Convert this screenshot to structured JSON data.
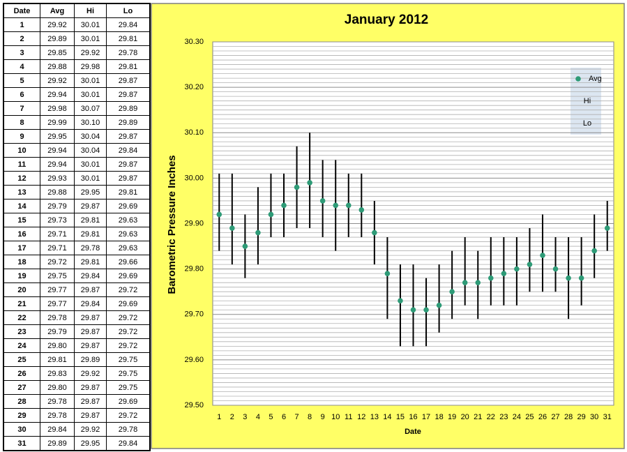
{
  "table": {
    "headers": [
      "Date",
      "Avg",
      "Hi",
      "Lo"
    ],
    "rows": [
      [
        "1",
        "29.92",
        "30.01",
        "29.84"
      ],
      [
        "2",
        "29.89",
        "30.01",
        "29.81"
      ],
      [
        "3",
        "29.85",
        "29.92",
        "29.78"
      ],
      [
        "4",
        "29.88",
        "29.98",
        "29.81"
      ],
      [
        "5",
        "29.92",
        "30.01",
        "29.87"
      ],
      [
        "6",
        "29.94",
        "30.01",
        "29.87"
      ],
      [
        "7",
        "29.98",
        "30.07",
        "29.89"
      ],
      [
        "8",
        "29.99",
        "30.10",
        "29.89"
      ],
      [
        "9",
        "29.95",
        "30.04",
        "29.87"
      ],
      [
        "10",
        "29.94",
        "30.04",
        "29.84"
      ],
      [
        "11",
        "29.94",
        "30.01",
        "29.87"
      ],
      [
        "12",
        "29.93",
        "30.01",
        "29.87"
      ],
      [
        "13",
        "29.88",
        "29.95",
        "29.81"
      ],
      [
        "14",
        "29.79",
        "29.87",
        "29.69"
      ],
      [
        "15",
        "29.73",
        "29.81",
        "29.63"
      ],
      [
        "16",
        "29.71",
        "29.81",
        "29.63"
      ],
      [
        "17",
        "29.71",
        "29.78",
        "29.63"
      ],
      [
        "18",
        "29.72",
        "29.81",
        "29.66"
      ],
      [
        "19",
        "29.75",
        "29.84",
        "29.69"
      ],
      [
        "20",
        "29.77",
        "29.87",
        "29.72"
      ],
      [
        "21",
        "29.77",
        "29.84",
        "29.69"
      ],
      [
        "22",
        "29.78",
        "29.87",
        "29.72"
      ],
      [
        "23",
        "29.79",
        "29.87",
        "29.72"
      ],
      [
        "24",
        "29.80",
        "29.87",
        "29.72"
      ],
      [
        "25",
        "29.81",
        "29.89",
        "29.75"
      ],
      [
        "26",
        "29.83",
        "29.92",
        "29.75"
      ],
      [
        "27",
        "29.80",
        "29.87",
        "29.75"
      ],
      [
        "28",
        "29.78",
        "29.87",
        "29.69"
      ],
      [
        "29",
        "29.78",
        "29.87",
        "29.72"
      ],
      [
        "30",
        "29.84",
        "29.92",
        "29.78"
      ],
      [
        "31",
        "29.89",
        "29.95",
        "29.84"
      ]
    ]
  },
  "chart_data": {
    "type": "errorbar",
    "title": "January 2012",
    "x_label": "Date",
    "y_label": "Barometric Pressure Inches",
    "categories": [
      1,
      2,
      3,
      4,
      5,
      6,
      7,
      8,
      9,
      10,
      11,
      12,
      13,
      14,
      15,
      16,
      17,
      18,
      19,
      20,
      21,
      22,
      23,
      24,
      25,
      26,
      27,
      28,
      29,
      30,
      31
    ],
    "series": [
      {
        "name": "Avg",
        "color": "#2e9b77",
        "values": [
          29.92,
          29.89,
          29.85,
          29.88,
          29.92,
          29.94,
          29.98,
          29.99,
          29.95,
          29.94,
          29.94,
          29.93,
          29.88,
          29.79,
          29.73,
          29.71,
          29.71,
          29.72,
          29.75,
          29.77,
          29.77,
          29.78,
          29.79,
          29.8,
          29.81,
          29.83,
          29.8,
          29.78,
          29.78,
          29.84,
          29.89
        ]
      },
      {
        "name": "Hi",
        "color": "#000000",
        "values": [
          30.01,
          30.01,
          29.92,
          29.98,
          30.01,
          30.01,
          30.07,
          30.1,
          30.04,
          30.04,
          30.01,
          30.01,
          29.95,
          29.87,
          29.81,
          29.81,
          29.78,
          29.81,
          29.84,
          29.87,
          29.84,
          29.87,
          29.87,
          29.87,
          29.89,
          29.92,
          29.87,
          29.87,
          29.87,
          29.92,
          29.95
        ]
      },
      {
        "name": "Lo",
        "color": "#000000",
        "values": [
          29.84,
          29.81,
          29.78,
          29.81,
          29.87,
          29.87,
          29.89,
          29.89,
          29.87,
          29.84,
          29.87,
          29.87,
          29.81,
          29.69,
          29.63,
          29.63,
          29.63,
          29.66,
          29.69,
          29.72,
          29.69,
          29.72,
          29.72,
          29.72,
          29.75,
          29.75,
          29.75,
          29.69,
          29.72,
          29.78,
          29.84
        ]
      }
    ],
    "ylim": [
      29.5,
      30.3
    ],
    "yticks": [
      {
        "value": 29.5,
        "label": "29.50"
      },
      {
        "value": 29.6,
        "label": "29.60"
      },
      {
        "value": 29.7,
        "label": "29.70"
      },
      {
        "value": 29.8,
        "label": "29.80"
      },
      {
        "value": 29.9,
        "label": "29.90"
      },
      {
        "value": 30.0,
        "label": "30.00"
      },
      {
        "value": 30.1,
        "label": "30.10"
      },
      {
        "value": 30.2,
        "label": "30.20"
      },
      {
        "value": 30.3,
        "label": "30.30"
      }
    ],
    "grid": true,
    "legend": "upper right",
    "background": "#ffff66"
  }
}
